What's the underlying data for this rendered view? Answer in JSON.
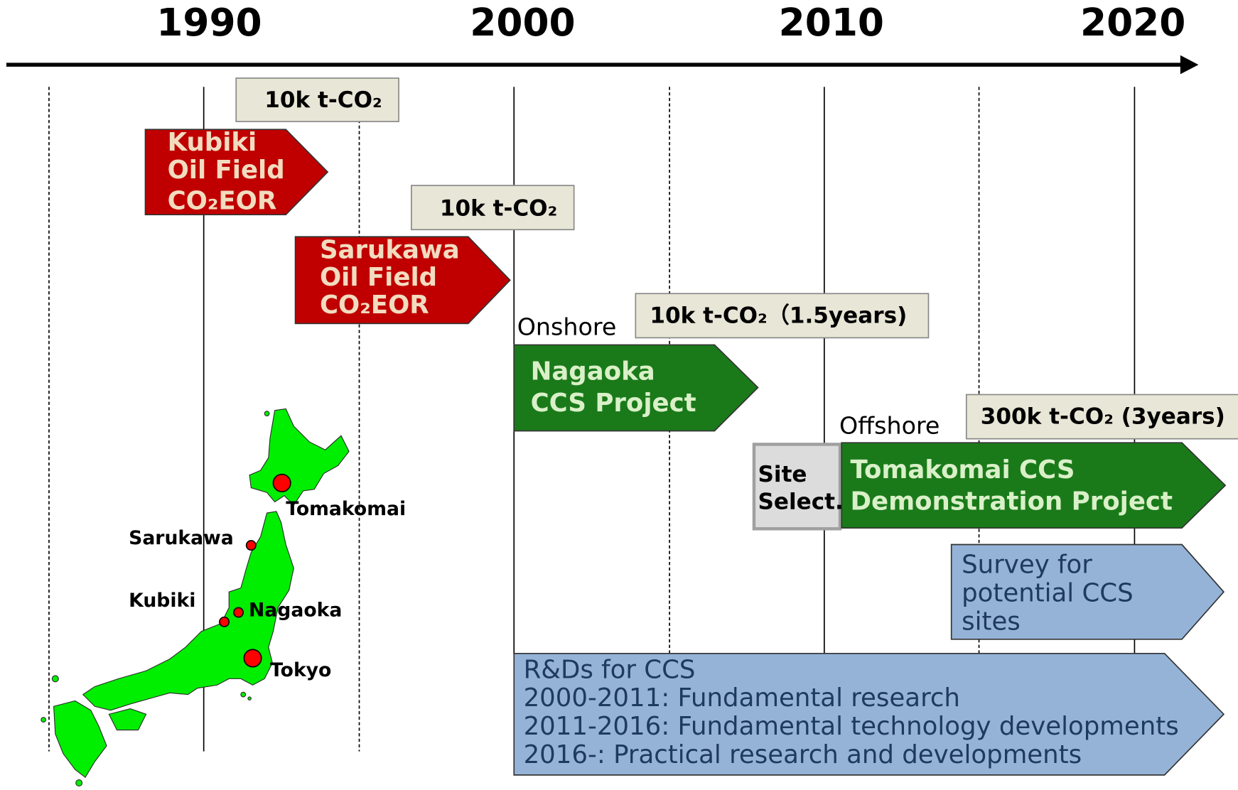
{
  "timeline": {
    "years": [
      "1990",
      "2000",
      "2010",
      "2020"
    ],
    "volumes": [
      "10k t-CO₂",
      "10k t-CO₂",
      "10k t-CO₂（1.5years)",
      "300k t-CO₂ (3years)"
    ],
    "kubiki": [
      "Kubiki",
      "Oil Field",
      "CO₂EOR"
    ],
    "sarukawa": [
      "Sarukawa",
      "Oil Field",
      "CO₂EOR"
    ],
    "onshore": "Onshore",
    "nagaoka": [
      "Nagaoka",
      "CCS Project"
    ],
    "offshore": "Offshore",
    "site_select": [
      "Site",
      "Select."
    ],
    "tomakomai": [
      "Tomakomai CCS",
      "Demonstration Project"
    ],
    "survey": [
      "Survey for",
      "potential CCS",
      "sites"
    ],
    "rnd": [
      "R&Ds for CCS",
      "2000-2011: Fundamental research",
      "2011-2016: Fundamental technology developments",
      "2016-: Practical research and developments"
    ]
  },
  "map": {
    "labels": [
      "Tomakomai",
      "Sarukawa",
      "Kubiki",
      "Nagaoka",
      "Tokyo"
    ]
  }
}
